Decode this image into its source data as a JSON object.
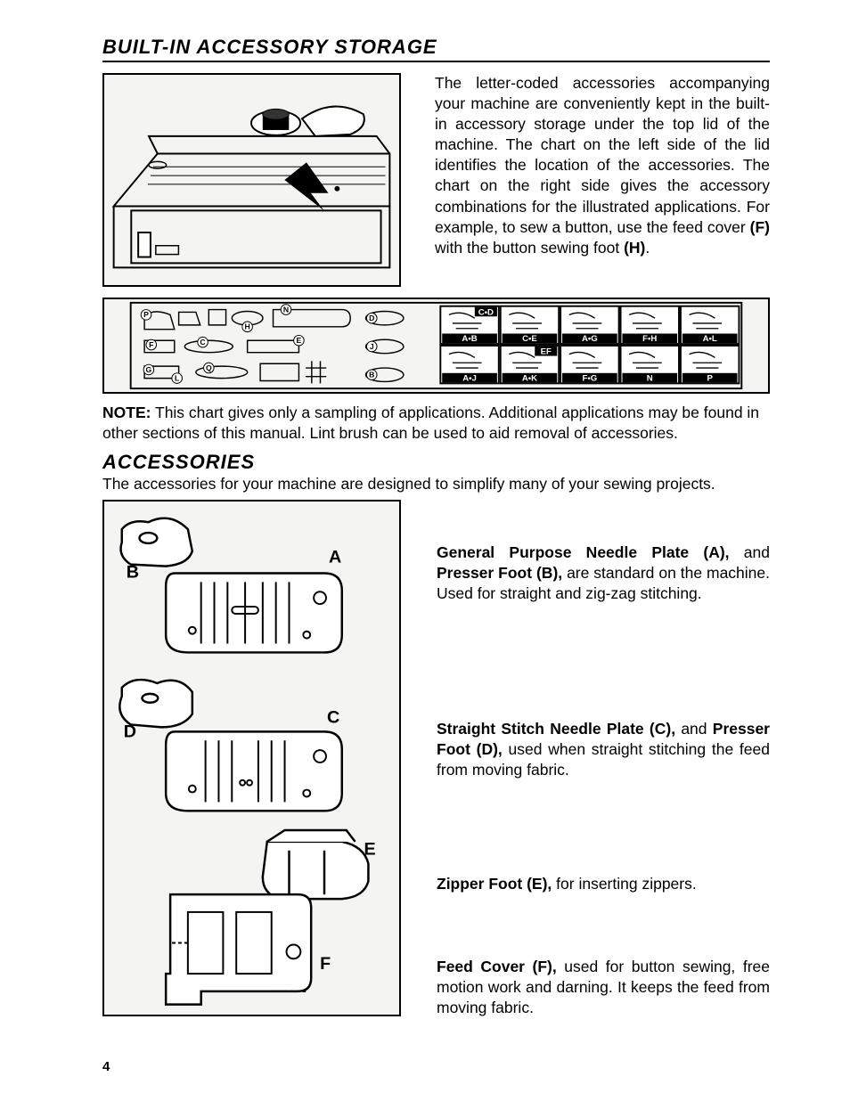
{
  "colors": {
    "page_bg": "#ffffff",
    "text": "#000000",
    "rule": "#000000",
    "fig_bg": "#f4f4f2",
    "fig_border": "#000000"
  },
  "typography": {
    "heading_fontsize_pt": 16,
    "heading_style": "bold italic",
    "body_fontsize_pt": 13,
    "body_align": "justify"
  },
  "page_number": "4",
  "section1": {
    "title": "BUILT-IN ACCESSORY STORAGE",
    "paragraph_parts": {
      "p1": "The letter-coded accessories accompanying your machine are conveniently kept in the built-in accessory storage under the top lid of the machine. The chart on the left side of the lid identifies the location of the accessories. The chart on the right side gives the accessory combinations for the illustrated applications. For example, to sew a button, use the feed cover ",
      "b1": "(F)",
      "p2": " with the button sewing foot ",
      "b2": "(H)",
      "p3": "."
    },
    "note_label": "NOTE:",
    "note_text": " This chart gives only a sampling of applications. Additional applications may be found in other sections of this manual.  Lint brush can be used to aid removal of accessories.",
    "chart_cells": [
      {
        "top": "C•D",
        "bottom": "A•B"
      },
      {
        "top": "",
        "bottom": "C•E"
      },
      {
        "top": "",
        "bottom": "A•G"
      },
      {
        "top": "",
        "bottom": "F•H"
      },
      {
        "top": "",
        "bottom": "A•L"
      },
      {
        "top": "",
        "bottom": "A•J"
      },
      {
        "top": "EF",
        "bottom": "A•K"
      },
      {
        "top": "",
        "bottom": "F•G"
      },
      {
        "top": "",
        "bottom": "N"
      },
      {
        "top": "",
        "bottom": "P"
      }
    ],
    "storage_letters": [
      "P",
      "N",
      "H",
      "E",
      "D",
      "F",
      "C",
      "J",
      "G",
      "Q",
      "B",
      "L"
    ]
  },
  "section2": {
    "title": "ACCESSORIES",
    "intro": "The accessories for your machine are designed to simplify many of your sewing projects.",
    "fig_labels": {
      "A": "A",
      "B": "B",
      "C": "C",
      "D": "D",
      "E": "E",
      "F": "F"
    },
    "items": {
      "ab": {
        "b1": "General Purpose Needle Plate (A),",
        "t1": " and ",
        "b2": "Presser Foot (B),",
        "t2": " are standard on the machine. Used for straight and zig-zag stitching."
      },
      "cd": {
        "b1": "Straight Stitch Needle Plate (C),",
        "t1": " and ",
        "b2": "Presser Foot (D),",
        "t2": " used when straight stitching the feed from moving fabric."
      },
      "e": {
        "b1": "Zipper Foot (E),",
        "t1": " for inserting zippers."
      },
      "f": {
        "b1": "Feed Cover (F),",
        "t1": " used for button sewing, free motion work and darning. It keeps the feed from moving fabric."
      }
    }
  }
}
